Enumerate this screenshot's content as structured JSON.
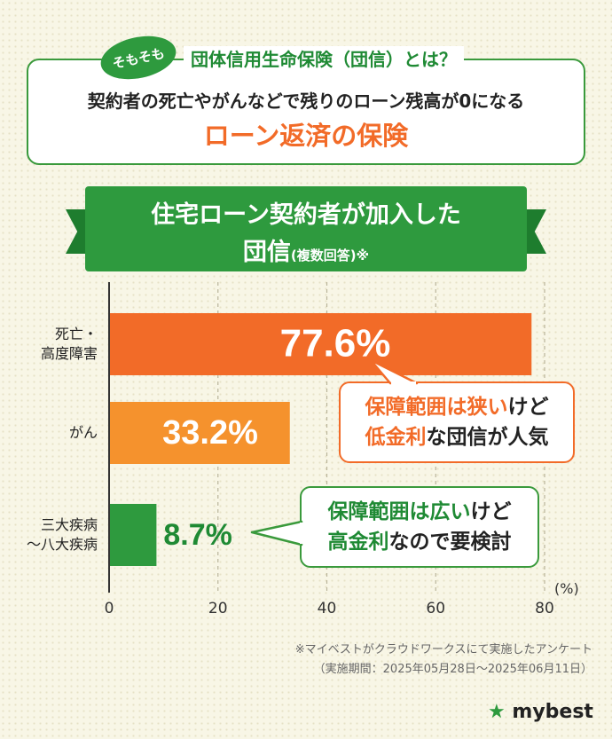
{
  "info": {
    "badge": "そもそも",
    "heading": "団体信用生命保険（団信）とは？",
    "description": "契約者の死亡やがんなどで残りのローン残高が0になる",
    "highlight": "ローン返済の保険"
  },
  "banner": {
    "title_line1": "住宅ローン契約者が加入した",
    "title_line2": "団信",
    "title_sub": "(複数回答)※"
  },
  "chart_data": {
    "type": "bar",
    "orientation": "horizontal",
    "categories": [
      "死亡・\n高度障害",
      "がん",
      "三大疾病\n〜八大疾病"
    ],
    "values": [
      77.6,
      33.2,
      8.7
    ],
    "value_labels": [
      "77.6%",
      "33.2%",
      "8.7%"
    ],
    "colors": [
      "#f26b28",
      "#f5922d",
      "#2e9a3e"
    ],
    "xlim": [
      0,
      80
    ],
    "ticks": [
      0,
      20,
      40,
      60,
      80
    ],
    "xunit": "(%)",
    "grid": true
  },
  "callouts": {
    "c1": {
      "line1_em": "保障範囲は狭い",
      "line1_rest": "けど",
      "line2_em": "低金利",
      "line2_rest": "な団信が人気"
    },
    "c2": {
      "line1_em": "保障範囲は広い",
      "line1_rest": "けど",
      "line2_em": "高金利",
      "line2_rest": "なので要検討"
    }
  },
  "footnote": {
    "line1": "※マイベストがクラウドワークスにて実施したアンケート",
    "line2": "（実施期間：2025年05月28日〜2025年06月11日）"
  },
  "brand": {
    "star": "★",
    "name": "mybest"
  }
}
